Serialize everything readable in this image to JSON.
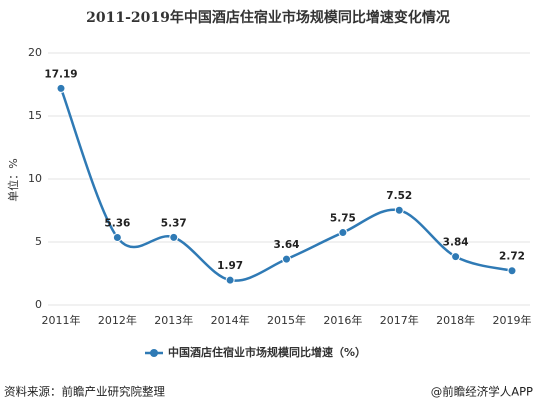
{
  "chart_data": {
    "type": "line",
    "title": "2011-2019年中国酒店住宿业市场规模同比增速变化情况",
    "y_label": "单位：%",
    "categories": [
      "2011年",
      "2012年",
      "2013年",
      "2014年",
      "2015年",
      "2016年",
      "2017年",
      "2018年",
      "2019年"
    ],
    "series": [
      {
        "name": "中国酒店住宿业市场规模同比增速（%）",
        "color": "#2f7ab5",
        "values": [
          17.19,
          5.36,
          5.37,
          1.97,
          3.64,
          5.75,
          7.52,
          3.84,
          2.72
        ]
      }
    ],
    "ylim": [
      0,
      20
    ],
    "yticks": [
      0,
      5,
      10,
      15,
      20
    ],
    "grid": true,
    "smooth": true,
    "source": "资料来源：前瞻产业研究院整理",
    "credit": "@前瞻经济学人APP"
  }
}
